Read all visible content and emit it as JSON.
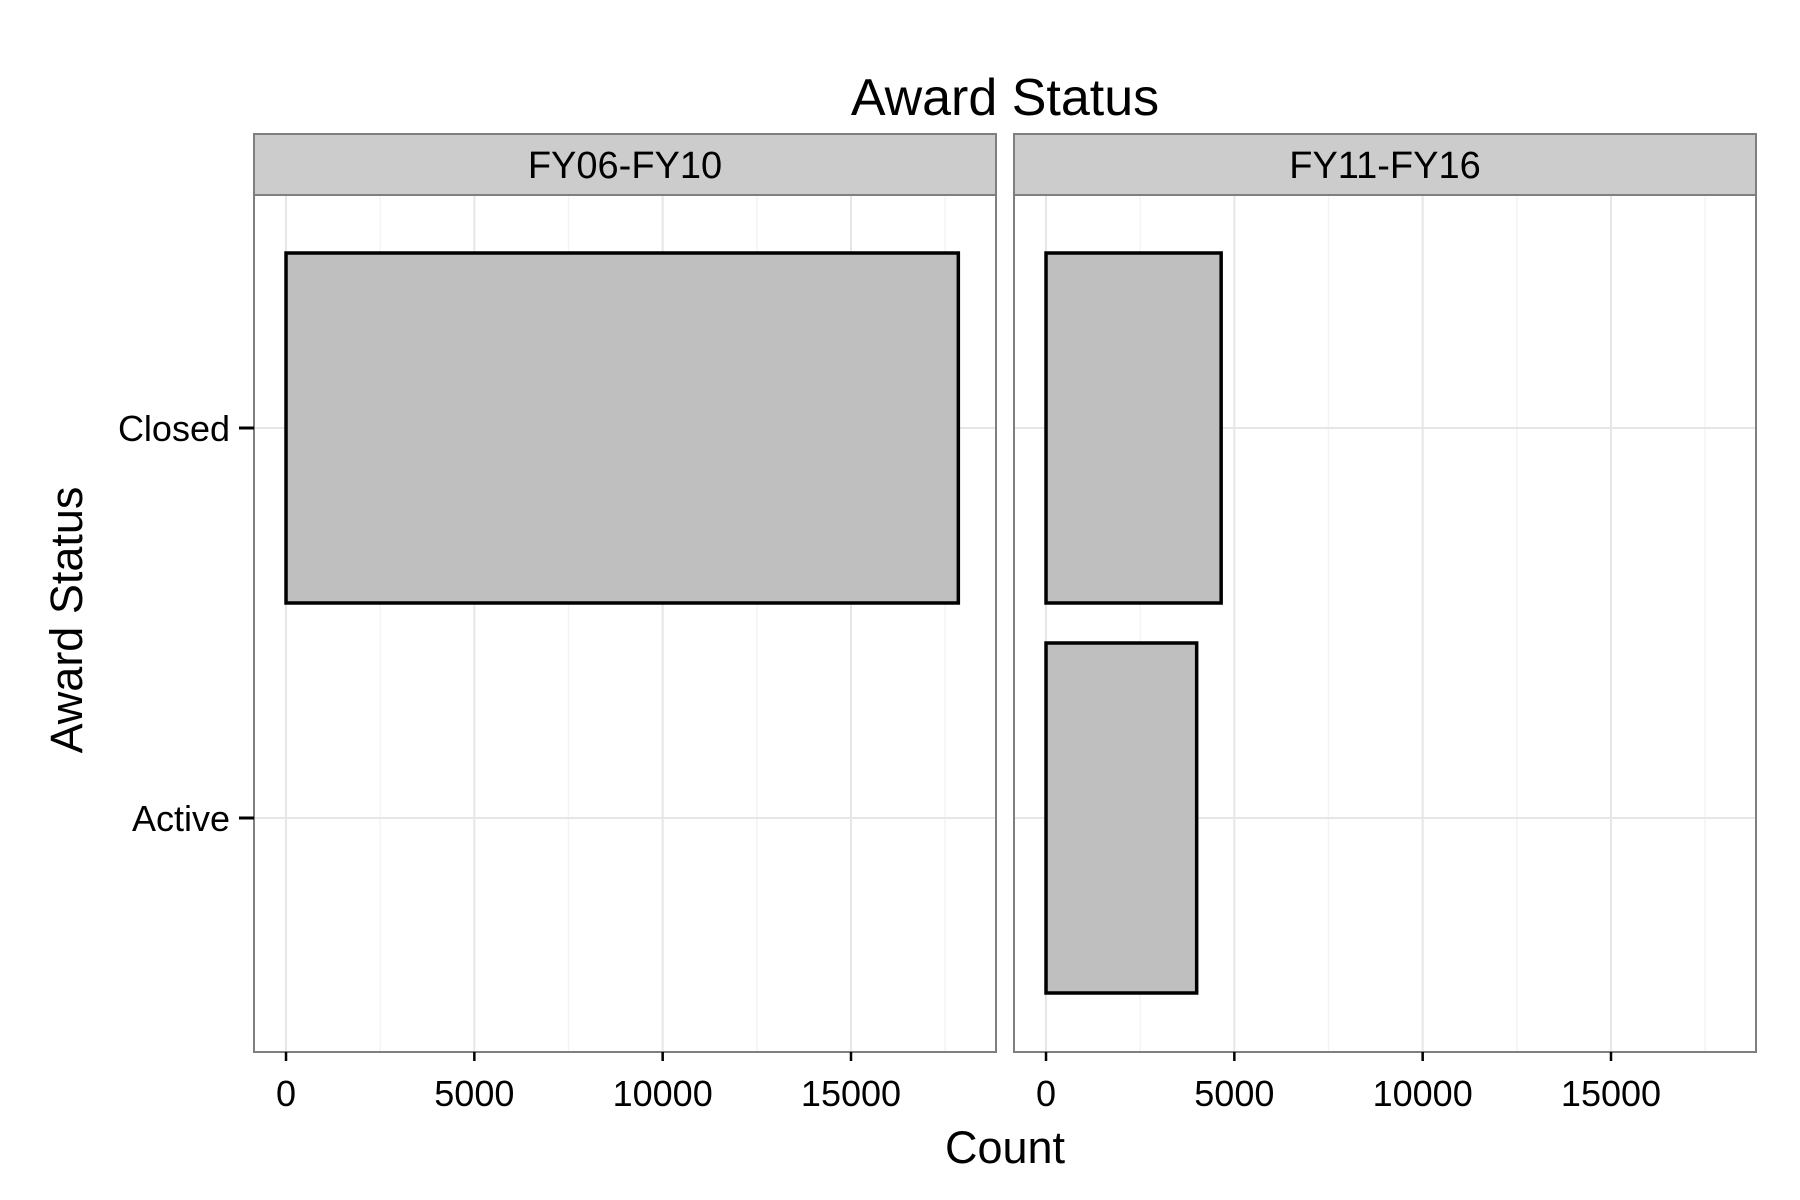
{
  "chart_data": {
    "type": "bar",
    "orientation": "horizontal",
    "title": "Award Status",
    "xlabel": "Count",
    "ylabel": "Award Status",
    "categories": [
      "Active",
      "Closed"
    ],
    "xlim": [
      -850,
      18850
    ],
    "xticks": [
      0,
      5000,
      10000,
      15000
    ],
    "grid": true,
    "bar_fill": "#bfbfbf",
    "bar_stroke": "#000000",
    "strip_fill": "#cccccc",
    "panels": [
      {
        "label": "FY06-FY10",
        "values": [
          0,
          17850
        ]
      },
      {
        "label": "FY11-FY16",
        "values": [
          4000,
          4650
        ]
      }
    ]
  }
}
